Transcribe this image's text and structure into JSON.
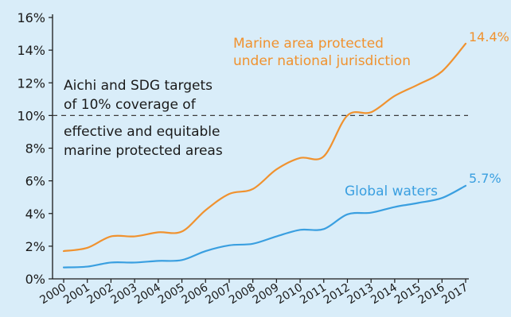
{
  "chart_data": {
    "type": "line",
    "x": [
      "2000",
      "2001",
      "2002",
      "2003",
      "2004",
      "2005",
      "2006",
      "2007",
      "2008",
      "2009",
      "2010",
      "2011",
      "2012",
      "2013",
      "2014",
      "2015",
      "2016",
      "2017"
    ],
    "series": [
      {
        "name": "Marine area protected under national jurisdiction",
        "label_lines": [
          "Marine  area  protected",
          "under national jurisdiction"
        ],
        "end_label": "14.4%",
        "color": "#f0922f",
        "values": [
          1.7,
          1.9,
          2.6,
          2.6,
          2.85,
          2.9,
          4.2,
          5.2,
          5.5,
          6.7,
          7.4,
          7.5,
          10.0,
          10.2,
          11.2,
          11.9,
          12.7,
          14.4
        ]
      },
      {
        "name": "Global waters",
        "label_lines": [
          "Global waters"
        ],
        "end_label": "5.7%",
        "color": "#3a9fe0",
        "values": [
          0.7,
          0.75,
          1.0,
          1.0,
          1.1,
          1.15,
          1.7,
          2.05,
          2.15,
          2.6,
          3.0,
          3.05,
          3.95,
          4.05,
          4.4,
          4.65,
          4.95,
          5.7
        ]
      }
    ],
    "y_ticks": [
      "0%",
      "2%",
      "4%",
      "6%",
      "8%",
      "10%",
      "12%",
      "14%",
      "16%"
    ],
    "ylim": [
      0,
      16
    ],
    "xlabel": "",
    "ylabel": "",
    "reference_line": {
      "value": 10,
      "style": "dashed",
      "color": "#3c3c3c"
    },
    "annotation_lines_above": [
      "Aichi and SDG targets",
      "of 10% coverage of"
    ],
    "annotation_lines_below": [
      "effective and equitable",
      "marine protected areas"
    ],
    "axis_color": "#1a1a1a",
    "text_color": "#1a1a1a"
  }
}
